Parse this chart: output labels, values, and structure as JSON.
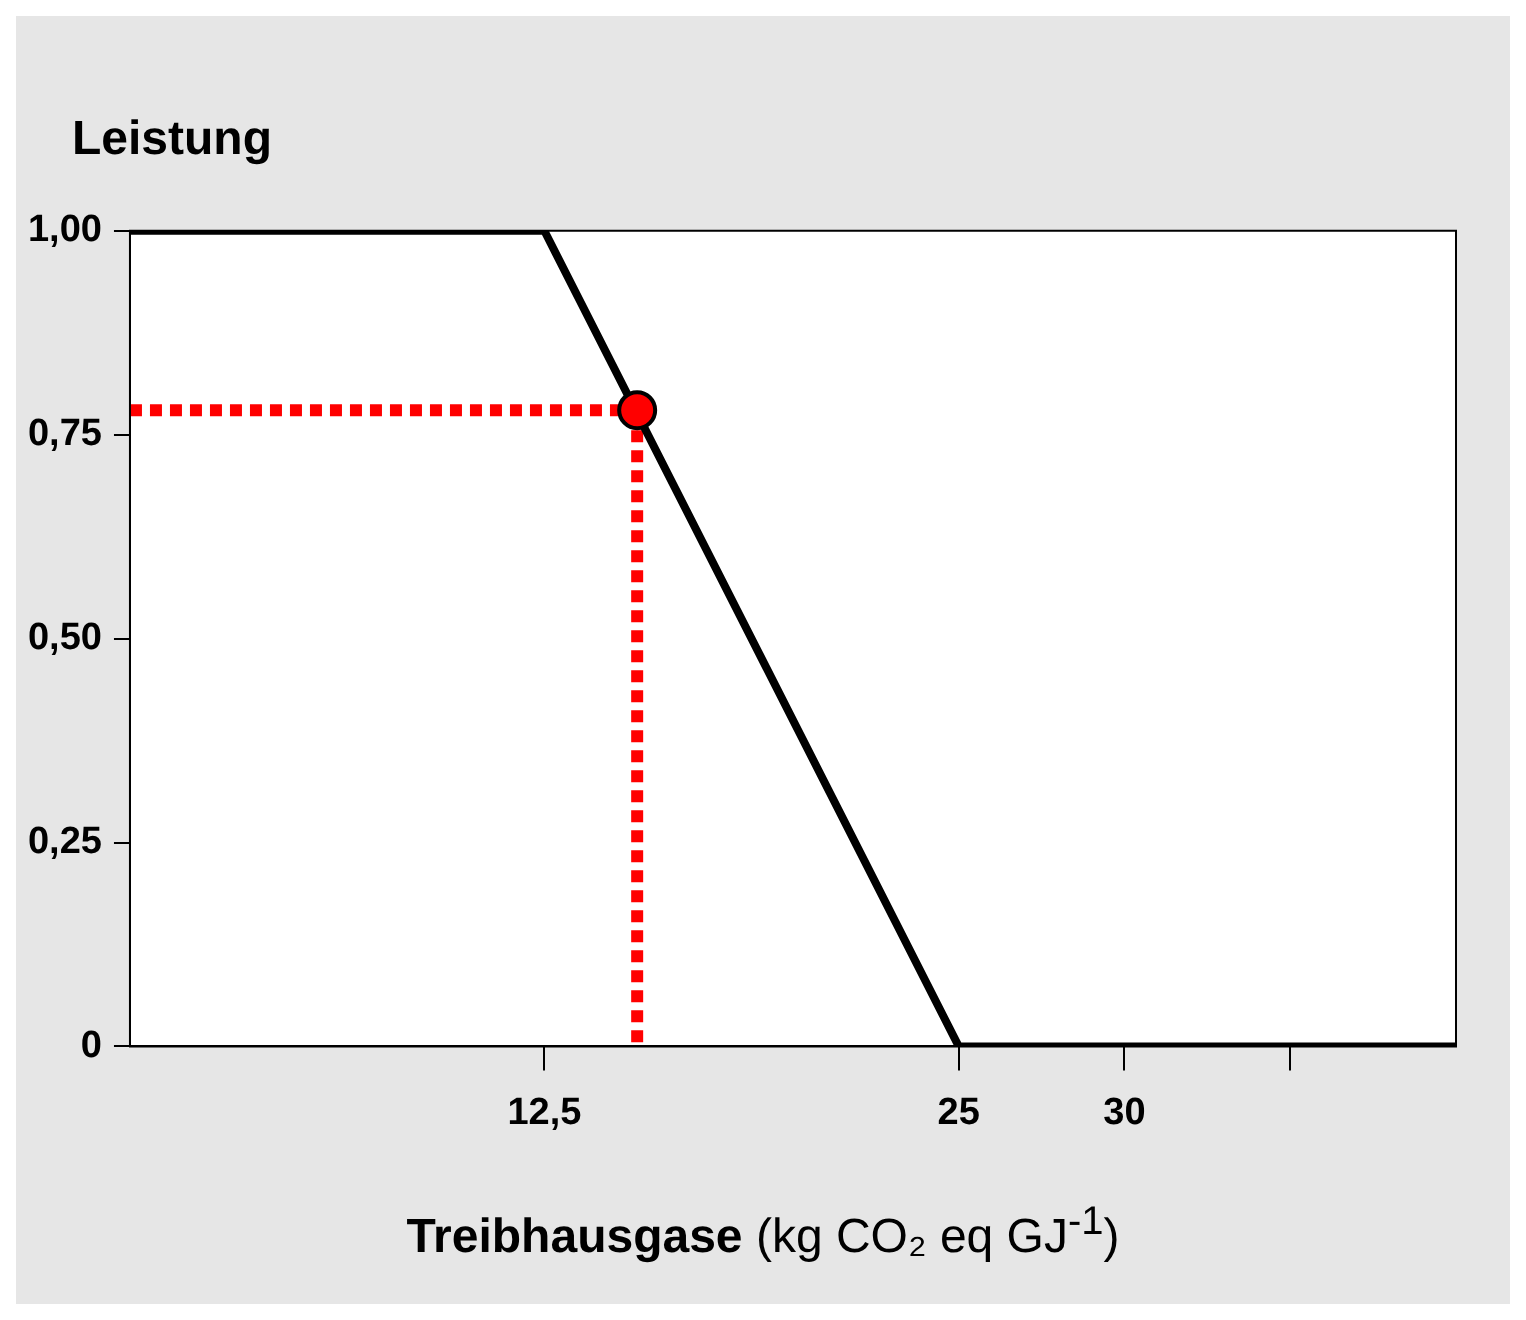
{
  "chart_data": {
    "type": "line",
    "ylabel": "Leistung",
    "xlabel": "Treibhausgase (kg CO₂ eq GJ$^{-1}$)",
    "xlim": [
      0,
      40
    ],
    "ylim": [
      0,
      1
    ],
    "xticks": [
      {
        "value": 12.5,
        "label": "12,5"
      },
      25,
      30,
      {
        "value": 35,
        "label": null
      }
    ],
    "yticks": [
      0,
      {
        "value": 0.25,
        "label": "0,25"
      },
      {
        "value": 0.5,
        "label": "0,50"
      },
      {
        "value": 0.75,
        "label": "0,75"
      },
      {
        "value": 1,
        "label": "1,00"
      }
    ],
    "grid": false,
    "legend": false,
    "marker": "none",
    "series": [
      {
        "type": "line",
        "color": "#000000",
        "x": [
          0,
          12.5,
          25,
          40
        ],
        "values": [
          1,
          1,
          0,
          0
        ]
      },
      {
        "type": "line",
        "color": "#ff0000",
        "line_style": "dotted",
        "x": [
          0,
          15.3
        ],
        "values": [
          0.78,
          0.78
        ]
      },
      {
        "type": "line",
        "color": "#ff0000",
        "line_style": "dotted",
        "x": [
          15.3,
          15.3
        ],
        "values": [
          0.78,
          0
        ]
      },
      {
        "type": "scatter",
        "color": "#ff0000",
        "marker": "circle",
        "x": [
          15.3
        ],
        "values": [
          0.78
        ]
      }
    ]
  }
}
